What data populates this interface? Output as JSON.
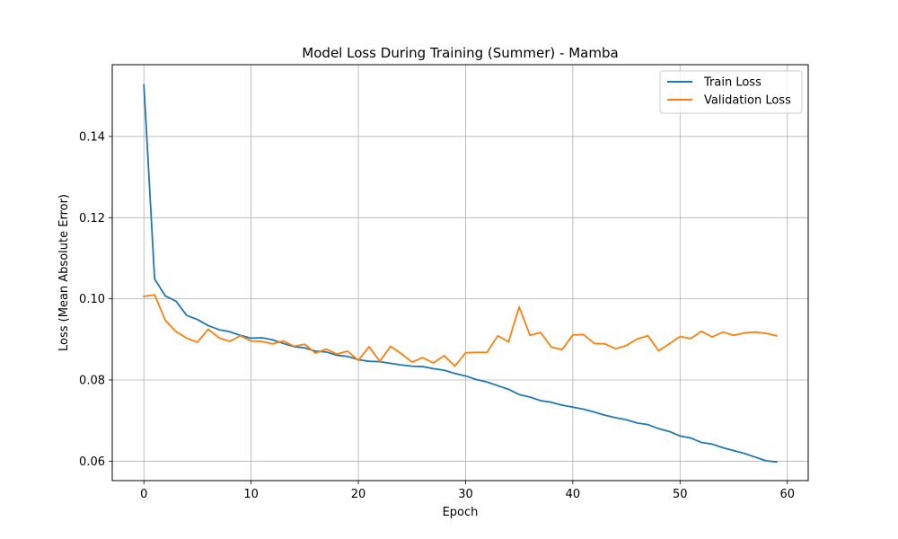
{
  "chart_data": {
    "type": "line",
    "title": "Model Loss During Training (Summer) - Mamba",
    "xlabel": "Epoch",
    "ylabel": "Loss (Mean Absolute Error)",
    "xlim": [
      -2.95,
      61.95
    ],
    "ylim": [
      0.0552,
      0.1577
    ],
    "x_ticks": [
      0,
      10,
      20,
      30,
      40,
      50,
      60
    ],
    "y_ticks": [
      0.06,
      0.08,
      0.1,
      0.12,
      0.14
    ],
    "y_tick_labels": [
      "0.06",
      "0.08",
      "0.10",
      "0.12",
      "0.14"
    ],
    "grid": true,
    "legend_position": "top-right",
    "x": [
      0,
      1,
      2,
      3,
      4,
      5,
      6,
      7,
      8,
      9,
      10,
      11,
      12,
      13,
      14,
      15,
      16,
      17,
      18,
      19,
      20,
      21,
      22,
      23,
      24,
      25,
      26,
      27,
      28,
      29,
      30,
      31,
      32,
      33,
      34,
      35,
      36,
      37,
      38,
      39,
      40,
      41,
      42,
      43,
      44,
      45,
      46,
      47,
      48,
      49,
      50,
      51,
      52,
      53,
      54,
      55,
      56,
      57,
      58,
      59
    ],
    "series": [
      {
        "name": "Train Loss",
        "color": "#1f77b4",
        "values": [
          0.1527,
          0.1049,
          0.1007,
          0.0994,
          0.0959,
          0.0949,
          0.0934,
          0.0924,
          0.0919,
          0.091,
          0.0903,
          0.0904,
          0.0899,
          0.089,
          0.0882,
          0.0879,
          0.0871,
          0.0869,
          0.0861,
          0.0858,
          0.085,
          0.0846,
          0.0845,
          0.0841,
          0.0837,
          0.0834,
          0.0833,
          0.0828,
          0.0824,
          0.0816,
          0.081,
          0.0801,
          0.0795,
          0.0786,
          0.0777,
          0.0764,
          0.0758,
          0.0749,
          0.0745,
          0.0738,
          0.0733,
          0.0728,
          0.0721,
          0.0713,
          0.0707,
          0.0702,
          0.0694,
          0.069,
          0.068,
          0.0673,
          0.0662,
          0.0657,
          0.0646,
          0.0642,
          0.0633,
          0.0626,
          0.0619,
          0.061,
          0.0601,
          0.0598
        ]
      },
      {
        "name": "Validation Loss",
        "color": "#ff7f0e",
        "values": [
          0.1006,
          0.101,
          0.0947,
          0.0919,
          0.0903,
          0.0893,
          0.0925,
          0.0904,
          0.0895,
          0.0909,
          0.0896,
          0.0895,
          0.0889,
          0.0896,
          0.0883,
          0.0888,
          0.0866,
          0.0876,
          0.0864,
          0.0871,
          0.0848,
          0.0882,
          0.0846,
          0.0883,
          0.0865,
          0.0844,
          0.0855,
          0.0842,
          0.086,
          0.0834,
          0.0867,
          0.0868,
          0.0868,
          0.0909,
          0.0894,
          0.098,
          0.091,
          0.0917,
          0.0881,
          0.0875,
          0.0911,
          0.0912,
          0.089,
          0.0889,
          0.0877,
          0.0885,
          0.0901,
          0.0909,
          0.0872,
          0.0889,
          0.0907,
          0.0902,
          0.092,
          0.0906,
          0.0918,
          0.091,
          0.0916,
          0.0918,
          0.0915,
          0.0909
        ]
      }
    ]
  }
}
